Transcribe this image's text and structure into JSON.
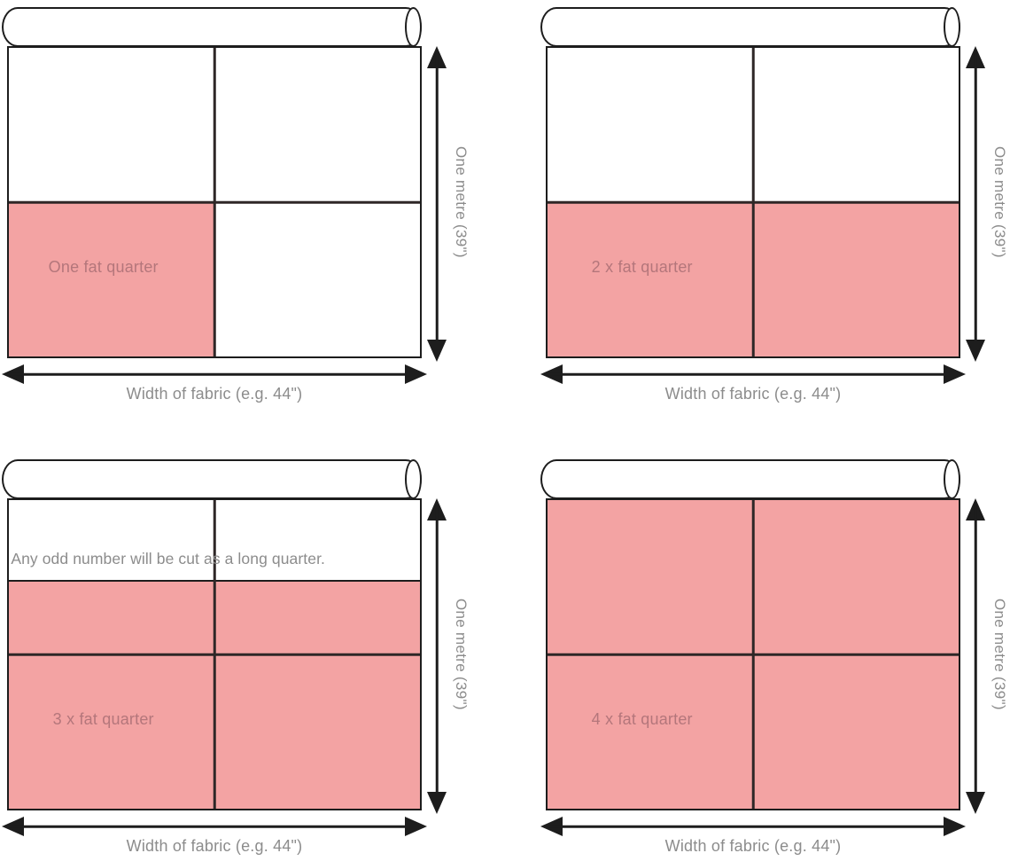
{
  "colors": {
    "pink_fill": "#f3a3a3",
    "outline": "#1d1d1d",
    "muted_text": "#8c8c8c",
    "pink_text": "#b4767b"
  },
  "axis": {
    "width_label": "Width of fabric (e.g. 44\")",
    "height_label": "One metre (39\")"
  },
  "panels": [
    {
      "label": "One fat quarter",
      "fat_quarter_count": 1
    },
    {
      "label": "2 x fat quarter",
      "fat_quarter_count": 2
    },
    {
      "label": "3 x fat quarter",
      "fat_quarter_count": 3,
      "note": "Any odd number will be cut as a long quarter."
    },
    {
      "label": "4 x fat quarter",
      "fat_quarter_count": 4
    }
  ]
}
